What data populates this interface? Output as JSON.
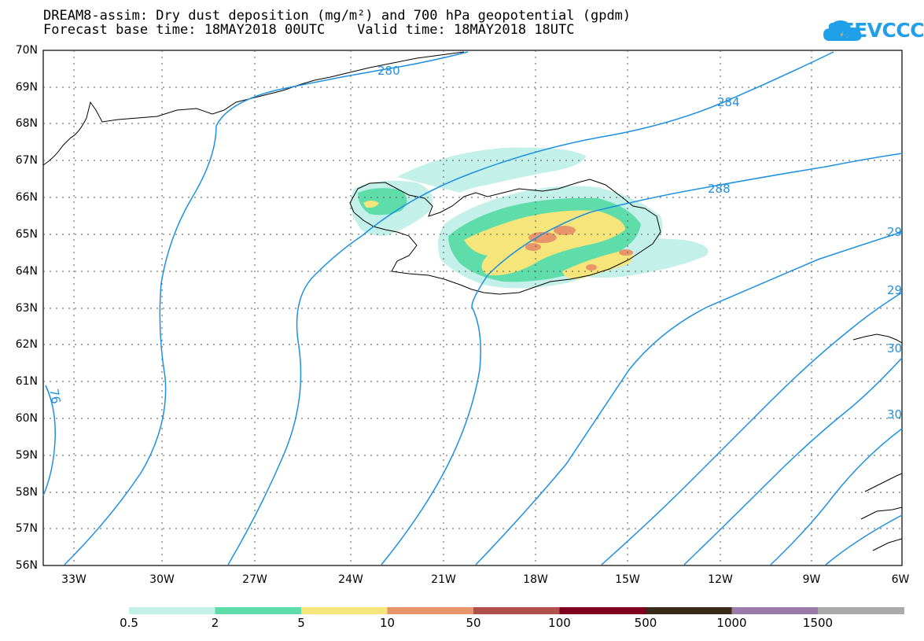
{
  "title": {
    "line1": "DREAM8-assim: Dry dust deposition (mg/m²) and 700 hPa geopotential (gpdm)",
    "line2": "Forecast base time: 18MAY2018 00UTC    Valid time: 18MAY2018 18UTC"
  },
  "logo": {
    "text": "SEEVCCC",
    "icon": "cloud-icon",
    "color": "#1fa0e8"
  },
  "map": {
    "lat_labels": [
      "70N",
      "69N",
      "68N",
      "67N",
      "66N",
      "65N",
      "64N",
      "63N",
      "62N",
      "61N",
      "60N",
      "59N",
      "58N",
      "57N",
      "56N"
    ],
    "lon_labels": [
      "33W",
      "30W",
      "27W",
      "24W",
      "21W",
      "18W",
      "15W",
      "12W",
      "9W",
      "6W"
    ],
    "contour_color": "#1e90e0",
    "contour_labels": [
      "280",
      "284",
      "288",
      "29",
      "29",
      "30",
      "30",
      "76"
    ]
  },
  "colorbar": {
    "colors": [
      "#c4f0ea",
      "#5edcaa",
      "#f5e57a",
      "#e8956a",
      "#b0504a",
      "#800020",
      "#3a2a1a",
      "#9a7aa8",
      "#aaaaaa"
    ],
    "labels": [
      "0.5",
      "2",
      "5",
      "10",
      "50",
      "100",
      "500",
      "1000",
      "1500"
    ]
  }
}
